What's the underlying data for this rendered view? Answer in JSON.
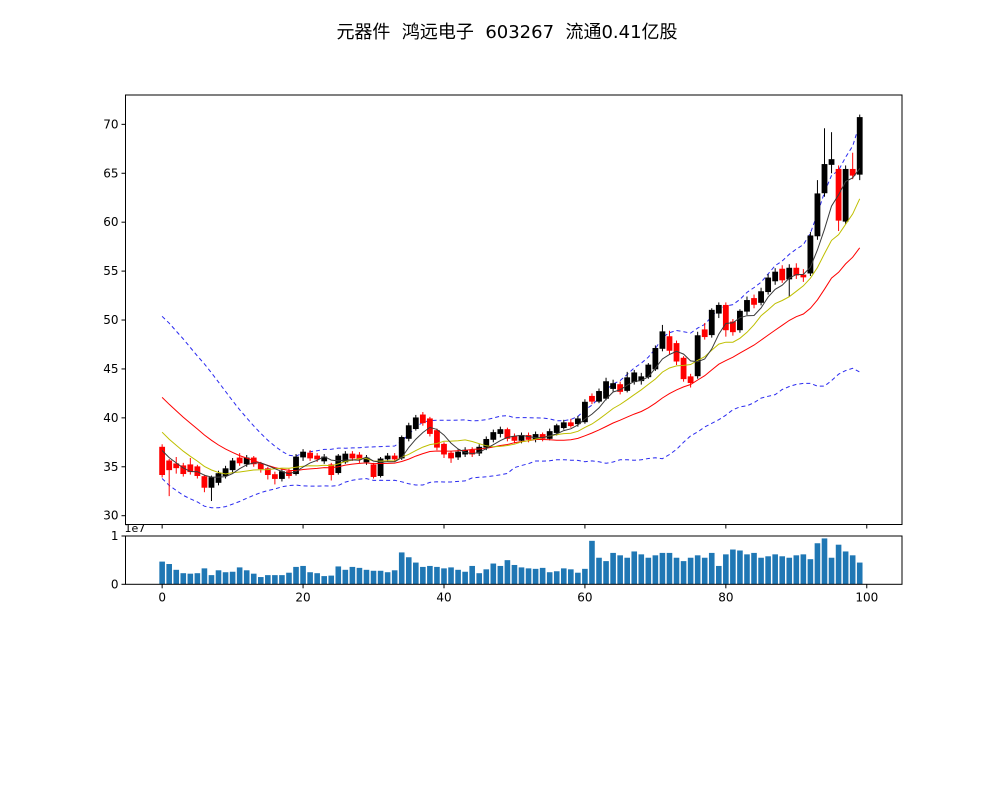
{
  "title": "元器件  鸿远电子  603267  流通0.41亿股",
  "chart_data": {
    "type": "candlestick",
    "title": "元器件  鸿远电子  603267  流通0.41亿股",
    "legend_position": "none",
    "grid": false,
    "up_color": "#000000",
    "down_color": "#ff0000",
    "volume_color": "#1f77b4",
    "band_color": "#2a2af0",
    "ma_fast_color": "#3a3a3a",
    "ma_mid_color": "#bfbf00",
    "ma_slow_color": "#ff0000",
    "xlim": [
      -5.2,
      105.0
    ],
    "price_axis": {
      "min": 29.1,
      "max": 73.0,
      "ticks": [
        30,
        35,
        40,
        45,
        50,
        55,
        60,
        65,
        70
      ]
    },
    "x_ticks": [
      0,
      20,
      40,
      60,
      80,
      100
    ],
    "volume_axis": {
      "min": 0,
      "max": 10000000,
      "ticks": [
        0,
        1
      ],
      "offset_label": "1e7"
    },
    "indicators": {
      "ma_fast_period": 5,
      "ma_mid_period": 10,
      "ma_slow_period": 20,
      "bollinger_period": 20,
      "bollinger_mult": 2
    },
    "pre_history_closes": [
      49.5,
      48.8,
      48.1,
      47.4,
      46.7,
      46.0,
      45.3,
      44.6,
      43.9,
      43.2,
      42.5,
      41.8,
      41.1,
      40.4,
      39.7,
      39.0,
      38.3,
      37.6,
      36.9,
      36.3
    ],
    "ohlc": [
      [
        37.0,
        37.3,
        33.9,
        34.2
      ],
      [
        35.6,
        35.8,
        32.0,
        34.7
      ],
      [
        35.3,
        36.0,
        34.3,
        34.9
      ],
      [
        35.1,
        35.4,
        34.0,
        34.3
      ],
      [
        35.2,
        35.9,
        34.2,
        34.5
      ],
      [
        35.0,
        35.2,
        33.8,
        34.1
      ],
      [
        34.0,
        34.2,
        32.4,
        32.9
      ],
      [
        32.9,
        34.1,
        31.5,
        33.9
      ],
      [
        33.4,
        34.6,
        33.1,
        34.3
      ],
      [
        34.1,
        35.1,
        33.8,
        34.8
      ],
      [
        34.7,
        35.9,
        34.4,
        35.6
      ],
      [
        35.9,
        36.4,
        35.1,
        35.4
      ],
      [
        35.3,
        36.2,
        35.0,
        35.9
      ],
      [
        35.9,
        36.1,
        35.0,
        35.3
      ],
      [
        35.3,
        35.5,
        34.4,
        34.8
      ],
      [
        34.8,
        35.0,
        33.7,
        34.2
      ],
      [
        34.2,
        34.5,
        33.2,
        33.8
      ],
      [
        33.8,
        34.8,
        33.5,
        34.5
      ],
      [
        34.5,
        34.8,
        33.8,
        34.1
      ],
      [
        34.3,
        36.3,
        34.1,
        36.0
      ],
      [
        36.0,
        36.8,
        35.6,
        36.5
      ],
      [
        36.4,
        36.7,
        35.6,
        35.9
      ],
      [
        36.1,
        36.4,
        35.5,
        35.8
      ],
      [
        35.6,
        36.3,
        35.3,
        36.0
      ],
      [
        35.2,
        35.4,
        33.6,
        34.2
      ],
      [
        34.4,
        36.3,
        34.2,
        36.1
      ],
      [
        35.5,
        36.6,
        35.3,
        36.3
      ],
      [
        36.3,
        36.6,
        35.6,
        35.9
      ],
      [
        36.2,
        36.5,
        35.4,
        35.8
      ],
      [
        35.5,
        36.2,
        35.2,
        35.9
      ],
      [
        35.2,
        35.4,
        33.8,
        34.0
      ],
      [
        34.1,
        36.0,
        33.9,
        35.8
      ],
      [
        35.8,
        36.4,
        35.5,
        36.1
      ],
      [
        36.1,
        36.4,
        35.5,
        35.8
      ],
      [
        35.9,
        38.2,
        35.7,
        38.0
      ],
      [
        37.9,
        39.5,
        37.6,
        39.2
      ],
      [
        38.9,
        40.3,
        38.7,
        40.0
      ],
      [
        40.3,
        40.6,
        39.2,
        39.5
      ],
      [
        39.9,
        40.1,
        38.1,
        38.4
      ],
      [
        38.7,
        38.9,
        36.7,
        37.0
      ],
      [
        37.3,
        37.5,
        35.9,
        36.3
      ],
      [
        36.4,
        36.6,
        35.4,
        35.9
      ],
      [
        36.0,
        36.8,
        35.7,
        36.5
      ],
      [
        36.3,
        37.0,
        36.0,
        36.7
      ],
      [
        36.7,
        37.0,
        36.0,
        36.3
      ],
      [
        36.4,
        37.3,
        36.1,
        37.0
      ],
      [
        37.0,
        38.1,
        36.7,
        37.8
      ],
      [
        37.8,
        38.8,
        37.5,
        38.5
      ],
      [
        38.4,
        39.1,
        38.0,
        38.8
      ],
      [
        38.8,
        39.0,
        37.6,
        37.9
      ],
      [
        38.1,
        38.4,
        37.4,
        37.7
      ],
      [
        37.7,
        38.5,
        37.4,
        38.2
      ],
      [
        38.2,
        38.5,
        37.5,
        37.8
      ],
      [
        37.8,
        38.6,
        37.5,
        38.3
      ],
      [
        38.3,
        38.5,
        37.6,
        37.9
      ],
      [
        37.9,
        38.9,
        37.7,
        38.6
      ],
      [
        38.5,
        39.4,
        38.2,
        39.2
      ],
      [
        39.0,
        39.8,
        38.8,
        39.5
      ],
      [
        39.5,
        39.9,
        39.0,
        39.2
      ],
      [
        39.4,
        40.2,
        39.1,
        39.9
      ],
      [
        39.6,
        41.9,
        39.4,
        41.6
      ],
      [
        42.2,
        42.5,
        41.4,
        41.7
      ],
      [
        41.7,
        43.0,
        41.5,
        42.7
      ],
      [
        42.0,
        44.1,
        41.8,
        43.7
      ],
      [
        43.0,
        43.9,
        42.7,
        43.5
      ],
      [
        43.4,
        43.7,
        42.4,
        42.7
      ],
      [
        42.8,
        44.7,
        42.6,
        44.1
      ],
      [
        43.7,
        44.9,
        43.4,
        44.6
      ],
      [
        43.8,
        44.6,
        43.4,
        44.2
      ],
      [
        44.2,
        45.6,
        44.0,
        45.4
      ],
      [
        45.0,
        47.4,
        44.8,
        47.1
      ],
      [
        47.1,
        49.5,
        46.8,
        48.8
      ],
      [
        48.3,
        48.9,
        46.5,
        46.9
      ],
      [
        47.6,
        47.9,
        45.4,
        45.8
      ],
      [
        46.1,
        46.3,
        43.7,
        44.0
      ],
      [
        44.2,
        44.5,
        43.1,
        43.6
      ],
      [
        44.3,
        48.8,
        44.0,
        48.4
      ],
      [
        49.0,
        49.7,
        48.0,
        48.3
      ],
      [
        48.5,
        51.2,
        48.2,
        51.0
      ],
      [
        50.7,
        51.8,
        50.2,
        51.5
      ],
      [
        51.5,
        51.8,
        48.3,
        49.0
      ],
      [
        49.8,
        50.1,
        48.4,
        48.8
      ],
      [
        49.0,
        51.1,
        48.7,
        50.9
      ],
      [
        50.9,
        52.4,
        50.5,
        52.0
      ],
      [
        52.2,
        52.6,
        51.2,
        51.6
      ],
      [
        51.8,
        53.3,
        51.5,
        52.9
      ],
      [
        52.9,
        54.7,
        52.6,
        54.3
      ],
      [
        54.0,
        55.3,
        53.6,
        54.9
      ],
      [
        55.2,
        55.6,
        53.8,
        54.1
      ],
      [
        54.2,
        55.7,
        52.4,
        55.3
      ],
      [
        55.3,
        55.8,
        54.2,
        54.6
      ],
      [
        54.6,
        55.2,
        53.9,
        54.4
      ],
      [
        54.8,
        59.0,
        54.5,
        58.6
      ],
      [
        58.6,
        64.3,
        58.2,
        62.9
      ],
      [
        63.0,
        69.6,
        62.6,
        65.9
      ],
      [
        65.9,
        69.2,
        65.0,
        66.4
      ],
      [
        65.4,
        65.8,
        59.1,
        60.2
      ],
      [
        60.1,
        65.8,
        59.8,
        65.4
      ],
      [
        65.4,
        67.1,
        64.4,
        64.8
      ],
      [
        64.9,
        71.0,
        64.3,
        70.7
      ]
    ],
    "volume": [
      4700000,
      4200000,
      3000000,
      2300000,
      2200000,
      2300000,
      3300000,
      1900000,
      2900000,
      2500000,
      2600000,
      3500000,
      2900000,
      2200000,
      1500000,
      1900000,
      1900000,
      1900000,
      2400000,
      3600000,
      3800000,
      2500000,
      2300000,
      1700000,
      1800000,
      3700000,
      3000000,
      3600000,
      3400000,
      3000000,
      2800000,
      2800000,
      2500000,
      2900000,
      6600000,
      5600000,
      4500000,
      3600000,
      3800000,
      3600000,
      3300000,
      3500000,
      3000000,
      2600000,
      3800000,
      2300000,
      3100000,
      4300000,
      3800000,
      5000000,
      4000000,
      3500000,
      3300000,
      3200000,
      3400000,
      2500000,
      2700000,
      3300000,
      3100000,
      2400000,
      3200000,
      9000000,
      5500000,
      4800000,
      6500000,
      6000000,
      5500000,
      6800000,
      6200000,
      5500000,
      6000000,
      6500000,
      6500000,
      5500000,
      4800000,
      5500000,
      6000000,
      5500000,
      6500000,
      3800000,
      6200000,
      7200000,
      7000000,
      6200000,
      6500000,
      5500000,
      5800000,
      6200000,
      5800000,
      5500000,
      6000000,
      6200000,
      5200000,
      8500000,
      9500000,
      5500000,
      8200000,
      6800000,
      6000000,
      4500000
    ]
  }
}
